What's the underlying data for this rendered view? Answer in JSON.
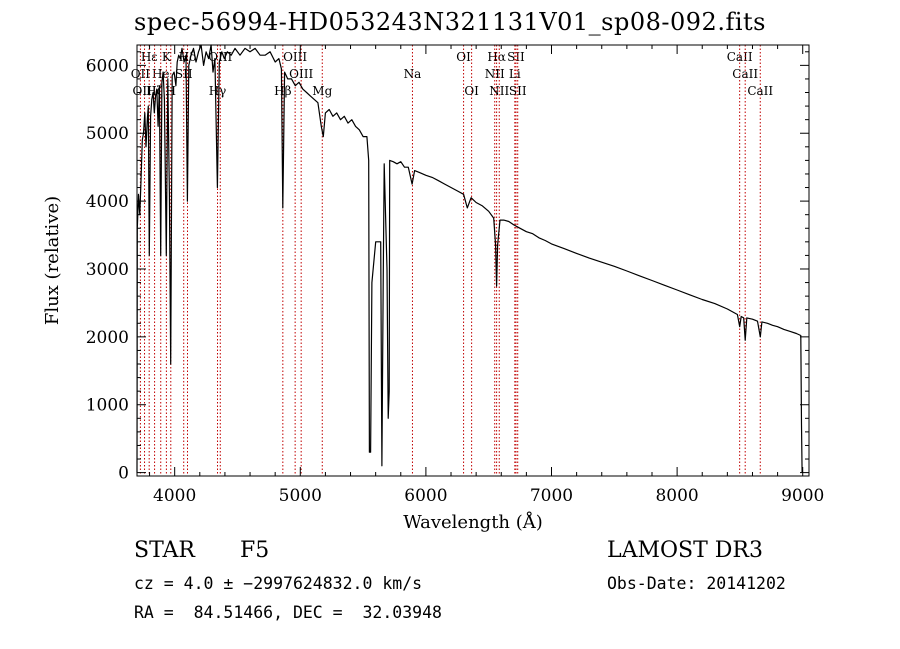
{
  "title": "spec-56994-HD053243N321131V01_sp08-092.fits",
  "footer": {
    "object_class": "STAR",
    "subclass": "F5",
    "survey": "LAMOST DR3",
    "cz": "cz = 4.0 ± −2997624832.0 km/s",
    "obs_date": "Obs-Date: 20141202",
    "coords": "RA =  84.51466, DEC =  32.03948"
  },
  "colors": {
    "line_marker": "#c00000",
    "spectrum": "#000000"
  },
  "chart_data": {
    "type": "line",
    "title": "spec-56994-HD053243N321131V01_sp08-092.fits",
    "xlabel": "Wavelength (Å)",
    "ylabel": "Flux (relative)",
    "xlim": [
      3700,
      9050
    ],
    "ylim": [
      -50,
      6300
    ],
    "xticks": [
      4000,
      5000,
      6000,
      7000,
      8000,
      9000
    ],
    "yticks": [
      0,
      1000,
      2000,
      3000,
      4000,
      5000,
      6000
    ],
    "x_tick_labels": [
      "4000",
      "5000",
      "6000",
      "7000",
      "8000",
      "9000"
    ],
    "y_tick_labels": [
      "0",
      "1000",
      "2000",
      "3000",
      "4000",
      "5000",
      "6000"
    ],
    "series": [
      {
        "name": "flux",
        "points": [
          [
            3700,
            0
          ],
          [
            3702,
            3600
          ],
          [
            3712,
            4100
          ],
          [
            3722,
            3800
          ],
          [
            3732,
            4300
          ],
          [
            3742,
            4900
          ],
          [
            3752,
            5000
          ],
          [
            3762,
            5300
          ],
          [
            3772,
            4800
          ],
          [
            3782,
            5200
          ],
          [
            3790,
            5400
          ],
          [
            3798,
            3200
          ],
          [
            3808,
            5250
          ],
          [
            3818,
            5500
          ],
          [
            3828,
            5600
          ],
          [
            3838,
            5300
          ],
          [
            3848,
            5550
          ],
          [
            3858,
            5650
          ],
          [
            3868,
            5100
          ],
          [
            3878,
            5700
          ],
          [
            3889,
            3200
          ],
          [
            3898,
            5750
          ],
          [
            3908,
            5900
          ],
          [
            3918,
            5500
          ],
          [
            3933,
            3200
          ],
          [
            3945,
            5800
          ],
          [
            3958,
            4100
          ],
          [
            3968,
            1600
          ],
          [
            3980,
            5850
          ],
          [
            3995,
            5900
          ],
          [
            4010,
            5700
          ],
          [
            4020,
            6050
          ],
          [
            4032,
            6150
          ],
          [
            4045,
            6100
          ],
          [
            4058,
            6250
          ],
          [
            4075,
            6050
          ],
          [
            4090,
            6150
          ],
          [
            4101,
            4000
          ],
          [
            4112,
            6000
          ],
          [
            4130,
            6150
          ],
          [
            4150,
            6250
          ],
          [
            4170,
            6050
          ],
          [
            4190,
            6200
          ],
          [
            4210,
            6300
          ],
          [
            4230,
            6000
          ],
          [
            4250,
            6200
          ],
          [
            4270,
            6100
          ],
          [
            4290,
            6300
          ],
          [
            4305,
            5900
          ],
          [
            4320,
            6100
          ],
          [
            4340,
            4200
          ],
          [
            4355,
            6050
          ],
          [
            4375,
            6200
          ],
          [
            4395,
            6100
          ],
          [
            4420,
            6200
          ],
          [
            4450,
            6150
          ],
          [
            4480,
            6250
          ],
          [
            4520,
            6150
          ],
          [
            4560,
            6250
          ],
          [
            4600,
            6200
          ],
          [
            4640,
            6250
          ],
          [
            4680,
            6150
          ],
          [
            4720,
            6150
          ],
          [
            4760,
            6200
          ],
          [
            4800,
            6050
          ],
          [
            4830,
            6100
          ],
          [
            4850,
            5950
          ],
          [
            4861,
            3900
          ],
          [
            4875,
            5900
          ],
          [
            4900,
            5800
          ],
          [
            4930,
            5800
          ],
          [
            4960,
            5700
          ],
          [
            4990,
            5750
          ],
          [
            5020,
            5650
          ],
          [
            5050,
            5600
          ],
          [
            5080,
            5550
          ],
          [
            5110,
            5500
          ],
          [
            5140,
            5450
          ],
          [
            5167,
            5100
          ],
          [
            5183,
            4950
          ],
          [
            5200,
            5300
          ],
          [
            5230,
            5350
          ],
          [
            5260,
            5250
          ],
          [
            5290,
            5300
          ],
          [
            5320,
            5200
          ],
          [
            5350,
            5250
          ],
          [
            5380,
            5150
          ],
          [
            5410,
            5200
          ],
          [
            5440,
            5100
          ],
          [
            5470,
            5050
          ],
          [
            5500,
            4950
          ],
          [
            5530,
            4950
          ],
          [
            5545,
            4600
          ],
          [
            5550,
            300
          ],
          [
            5560,
            300
          ],
          [
            5570,
            2800
          ],
          [
            5600,
            3400
          ],
          [
            5640,
            3400
          ],
          [
            5650,
            100
          ],
          [
            5660,
            2800
          ],
          [
            5668,
            4550
          ],
          [
            5690,
            3000
          ],
          [
            5700,
            800
          ],
          [
            5708,
            1200
          ],
          [
            5712,
            4600
          ],
          [
            5740,
            4580
          ],
          [
            5770,
            4550
          ],
          [
            5800,
            4580
          ],
          [
            5830,
            4500
          ],
          [
            5860,
            4500
          ],
          [
            5890,
            4250
          ],
          [
            5910,
            4450
          ],
          [
            5950,
            4420
          ],
          [
            6000,
            4380
          ],
          [
            6050,
            4350
          ],
          [
            6100,
            4300
          ],
          [
            6150,
            4250
          ],
          [
            6200,
            4200
          ],
          [
            6250,
            4150
          ],
          [
            6300,
            4100
          ],
          [
            6330,
            3900
          ],
          [
            6360,
            4050
          ],
          [
            6400,
            3980
          ],
          [
            6450,
            3930
          ],
          [
            6500,
            3850
          ],
          [
            6540,
            3750
          ],
          [
            6555,
            3350
          ],
          [
            6563,
            2750
          ],
          [
            6571,
            3350
          ],
          [
            6590,
            3720
          ],
          [
            6620,
            3720
          ],
          [
            6660,
            3700
          ],
          [
            6700,
            3650
          ],
          [
            6750,
            3600
          ],
          [
            6800,
            3550
          ],
          [
            6850,
            3520
          ],
          [
            6900,
            3460
          ],
          [
            6950,
            3420
          ],
          [
            7000,
            3370
          ],
          [
            7100,
            3300
          ],
          [
            7200,
            3230
          ],
          [
            7300,
            3160
          ],
          [
            7400,
            3100
          ],
          [
            7500,
            3040
          ],
          [
            7600,
            2970
          ],
          [
            7700,
            2900
          ],
          [
            7800,
            2830
          ],
          [
            7900,
            2760
          ],
          [
            8000,
            2690
          ],
          [
            8100,
            2620
          ],
          [
            8200,
            2550
          ],
          [
            8300,
            2490
          ],
          [
            8400,
            2410
          ],
          [
            8480,
            2330
          ],
          [
            8498,
            2150
          ],
          [
            8510,
            2300
          ],
          [
            8530,
            2280
          ],
          [
            8542,
            1950
          ],
          [
            8555,
            2280
          ],
          [
            8600,
            2260
          ],
          [
            8640,
            2230
          ],
          [
            8662,
            2000
          ],
          [
            8675,
            2220
          ],
          [
            8720,
            2200
          ],
          [
            8760,
            2170
          ],
          [
            8800,
            2150
          ],
          [
            8850,
            2110
          ],
          [
            8900,
            2080
          ],
          [
            8950,
            2050
          ],
          [
            8985,
            2020
          ],
          [
            8990,
            700
          ],
          [
            8995,
            0
          ]
        ]
      }
    ],
    "line_markers": [
      {
        "label": "Hε",
        "wavelength": 3797,
        "row": 1
      },
      {
        "label": "OII",
        "wavelength": 3727,
        "row": 2
      },
      {
        "label": "OIII",
        "wavelength": 3760,
        "row": 3
      },
      {
        "label": "He",
        "wavelength": 3889,
        "row": 2
      },
      {
        "label": "Hζ",
        "wavelength": 3840,
        "row": 3
      },
      {
        "label": "K",
        "wavelength": 3934,
        "row": 1
      },
      {
        "label": "H",
        "wavelength": 3969,
        "row": 3
      },
      {
        "label": "SII",
        "wavelength": 4072,
        "row": 2
      },
      {
        "label": "Hδ",
        "wavelength": 4102,
        "row": 1
      },
      {
        "label": "OIII",
        "wavelength": 4363,
        "row": 1
      },
      {
        "label": "Hγ",
        "wavelength": 4341,
        "row": 3
      },
      {
        "label": "OIII",
        "wavelength": 4959,
        "row": 1
      },
      {
        "label": "OIII",
        "wavelength": 5007,
        "row": 2
      },
      {
        "label": "Hβ",
        "wavelength": 4861,
        "row": 3
      },
      {
        "label": "Mg",
        "wavelength": 5175,
        "row": 3
      },
      {
        "label": "Na",
        "wavelength": 5893,
        "row": 2
      },
      {
        "label": "OI",
        "wavelength": 6300,
        "row": 1
      },
      {
        "label": "OI",
        "wavelength": 6364,
        "row": 3
      },
      {
        "label": "Hα",
        "wavelength": 6563,
        "row": 1
      },
      {
        "label": "NII",
        "wavelength": 6548,
        "row": 2
      },
      {
        "label": "NII",
        "wavelength": 6584,
        "row": 3
      },
      {
        "label": "SII",
        "wavelength": 6717,
        "row": 1
      },
      {
        "label": "Li",
        "wavelength": 6708,
        "row": 2
      },
      {
        "label": "SII",
        "wavelength": 6731,
        "row": 3
      },
      {
        "label": "CaII",
        "wavelength": 8498,
        "row": 1
      },
      {
        "label": "CaII",
        "wavelength": 8542,
        "row": 2
      },
      {
        "label": "CaII",
        "wavelength": 8662,
        "row": 3
      }
    ]
  }
}
